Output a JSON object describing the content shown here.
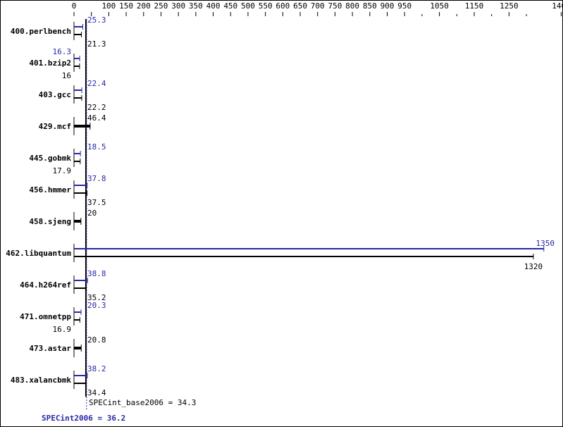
{
  "chart_data": {
    "type": "bar",
    "orientation": "horizontal",
    "xlim": [
      0,
      1400
    ],
    "x_ticks_labeled": [
      0,
      100,
      150,
      200,
      250,
      300,
      350,
      400,
      450,
      500,
      550,
      600,
      650,
      700,
      750,
      800,
      850,
      900,
      950,
      1050,
      1150,
      1250,
      1400
    ],
    "x_ticks_minor": [
      1000,
      1100,
      1200,
      1300
    ],
    "categories": [
      "400.perlbench",
      "401.bzip2",
      "403.gcc",
      "429.mcf",
      "445.gobmk",
      "456.hmmer",
      "458.sjeng",
      "462.libquantum",
      "464.h264ref",
      "471.omnetpp",
      "473.astar",
      "483.xalancbmk"
    ],
    "series": [
      {
        "name": "SPECint2006",
        "color": "#2828a8",
        "values": [
          25.3,
          16.3,
          22.4,
          null,
          18.5,
          37.8,
          null,
          1350,
          38.8,
          20.3,
          null,
          38.2
        ]
      },
      {
        "name": "SPECint_base2006",
        "color": "#000000",
        "values": [
          21.3,
          16.0,
          22.2,
          46.4,
          17.9,
          37.5,
          20.0,
          1320,
          35.2,
          16.9,
          20.8,
          34.4
        ]
      }
    ],
    "means": {
      "base_label": "SPECint_base2006 = 34.3",
      "base_value": 34.3,
      "peak_label": "SPECint2006 = 36.2",
      "peak_value": 36.2
    }
  }
}
